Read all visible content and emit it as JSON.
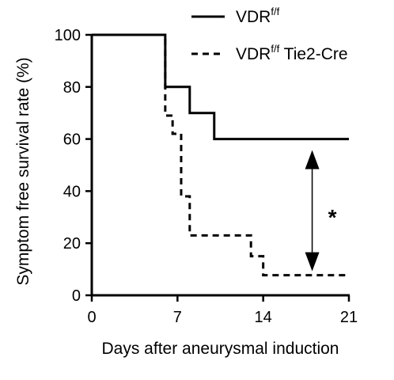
{
  "chart_data": {
    "type": "line",
    "subtype": "step",
    "title": "",
    "xlabel": "Days after aneurysmal induction",
    "ylabel": "Symptom free survival rate (%)",
    "xlim": [
      0,
      21
    ],
    "ylim": [
      0,
      100
    ],
    "x_ticks": [
      0,
      7,
      14,
      21
    ],
    "y_ticks": [
      0,
      20,
      40,
      60,
      80,
      100
    ],
    "grid": false,
    "legend_position": "top-right",
    "series": [
      {
        "name_main": "VDR",
        "name_sup": "f/f",
        "name_suffix": "",
        "line_style": "solid",
        "color": "#000000",
        "x": [
          0,
          6,
          6,
          8,
          8,
          10,
          10,
          21
        ],
        "y": [
          100,
          100,
          80,
          80,
          70,
          70,
          60,
          60
        ]
      },
      {
        "name_main": "VDR",
        "name_sup": "f/f",
        "name_suffix": " Tie2-Cre",
        "line_style": "dashed",
        "color": "#000000",
        "x": [
          0,
          6,
          6,
          6.6,
          6.6,
          7.3,
          7.3,
          8,
          8,
          13,
          13,
          14,
          14,
          21
        ],
        "y": [
          100,
          100,
          69,
          69,
          62,
          62,
          38,
          38,
          23,
          23,
          15,
          15,
          7.7,
          7.7
        ]
      }
    ],
    "annotations": [
      {
        "type": "double-arrow",
        "x": 18,
        "y_from": 60,
        "y_to": 7.7,
        "label": "*"
      }
    ]
  }
}
